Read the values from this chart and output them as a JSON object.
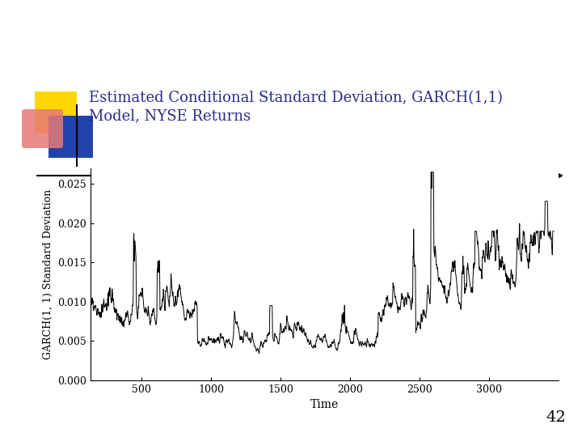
{
  "title_line1": "Estimated Conditional Standard Deviation, GARCH(1,1)",
  "title_line2": "Model, NYSE Returns",
  "title_color": "#2B2B8B",
  "xlabel": "Time",
  "ylabel": "GARCH(1, 1) Standard Deviation",
  "xlim": [
    130,
    3500
  ],
  "ylim": [
    0.0,
    0.027
  ],
  "xticks": [
    500,
    1000,
    1500,
    2000,
    2500,
    3000
  ],
  "yticks": [
    0.0,
    0.005,
    0.01,
    0.015,
    0.02,
    0.025
  ],
  "line_color": "#000000",
  "bg_color": "#ffffff",
  "page_number": "42",
  "seed": 42,
  "n_points": 3464,
  "yellow_color": "#FFD700",
  "blue_color": "#2244AA",
  "pink_color": "#E87878"
}
